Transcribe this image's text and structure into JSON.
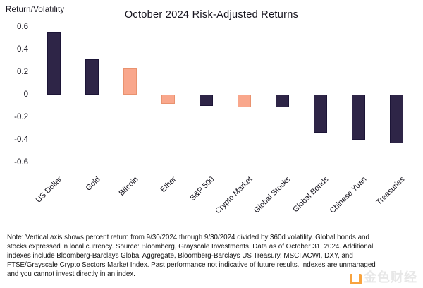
{
  "chart_data": {
    "type": "bar",
    "title": "October 2024 Risk-Adjusted Returns",
    "ylabel": "Return/Volatility",
    "xlabel": "",
    "categories": [
      "US Dollar",
      "Gold",
      "Bitcoin",
      "Ether",
      "S&P 500",
      "Crypto Market",
      "Global Stocks",
      "Global Bonds",
      "Chinese Yuan",
      "Treasuries"
    ],
    "values": [
      0.55,
      0.31,
      0.23,
      -0.08,
      -0.1,
      -0.11,
      -0.11,
      -0.34,
      -0.4,
      -0.43
    ],
    "bar_colors": [
      "navy",
      "navy",
      "salmon",
      "salmon",
      "navy",
      "salmon",
      "navy",
      "navy",
      "navy",
      "navy"
    ],
    "colors": {
      "navy": "#2E2547",
      "navy_edge": "#1C1537",
      "salmon": "#F9A78C",
      "salmon_edge": "#E9926F",
      "gridline": "#d9d9d9"
    },
    "yticks": [
      0.6,
      0.4,
      0.2,
      0,
      -0.2,
      -0.4,
      -0.6
    ],
    "ytick_labels": [
      "0.6",
      "0.4",
      "0.2",
      "0",
      "-0.2",
      "-0.4",
      "-0.6"
    ],
    "ylim": [
      -0.7,
      0.65
    ],
    "grid": "zero-line-only",
    "legend": "none"
  },
  "footnote": {
    "lines": [
      "Note: Vertical axis shows percent return from 9/30/2024 through 9/30/2024 divided by 360d volatility. Global bonds and",
      "stocks expressed in local currency. Source: Bloomberg, Grayscale Investments. Data as of October 31, 2024. Additional",
      "indexes include Bloomberg-Barclays Global Aggregate, Bloomberg-Barclays US Treasury, MSCI ACWI, DXY, and",
      "FTSE/Grayscale Crypto Sectors Market Index. Past performance not indicative of future results. Indexes are unmanaged",
      "and you cannot invest directly in an index."
    ]
  },
  "watermark": {
    "text": "金色财经",
    "accent_color": "#F7941D"
  }
}
